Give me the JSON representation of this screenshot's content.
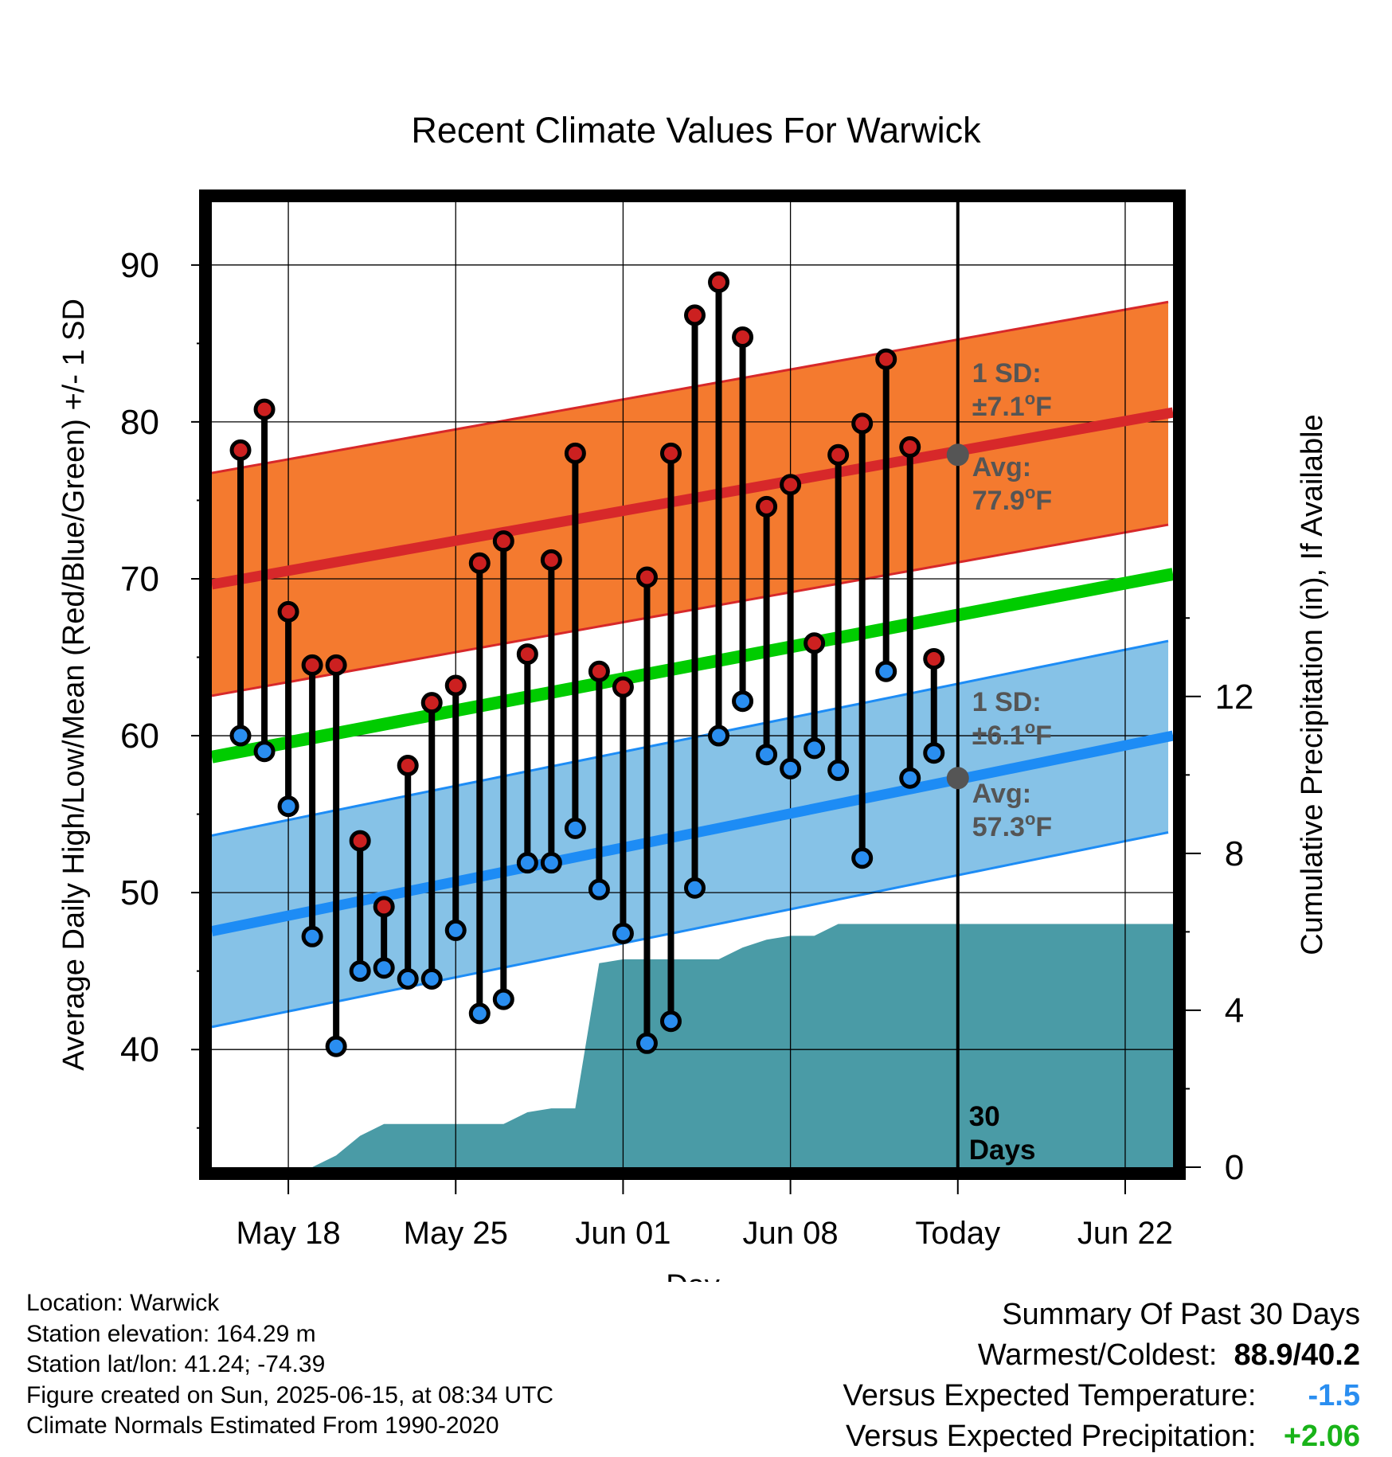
{
  "chart_data": {
    "type": "line",
    "title": "Recent Climate Values For Warwick",
    "xlabel": "Day",
    "ylabel": "Average Daily High/Low/Mean (Red/Blue/Green) +/- 1 SD",
    "y2label": "Cumulative Precipitation (in), If Available",
    "ylim": [
      32.5,
      94.0
    ],
    "y2lim": [
      0,
      24.6
    ],
    "y_ticks": [
      40,
      50,
      60,
      70,
      80,
      90
    ],
    "y2_ticks": [
      0,
      4,
      8,
      12
    ],
    "x_tick_labels": [
      {
        "day": 3,
        "label": "May 18"
      },
      {
        "day": 10,
        "label": "May 25"
      },
      {
        "day": 17,
        "label": "Jun 01"
      },
      {
        "day": 24,
        "label": "Jun 08"
      },
      {
        "day": 31,
        "label": "Today"
      },
      {
        "day": 38,
        "label": "Jun 22"
      }
    ],
    "grid": true,
    "today_marker": {
      "day": 31,
      "label_line1": "30",
      "label_line2": "Days"
    },
    "highs": [
      78.2,
      80.8,
      67.9,
      64.5,
      64.5,
      53.3,
      49.1,
      58.1,
      62.1,
      63.2,
      71.0,
      72.4,
      65.2,
      71.2,
      78.0,
      64.1,
      63.1,
      70.1,
      78.0,
      86.8,
      88.9,
      85.4,
      74.6,
      76.0,
      65.9,
      77.9,
      79.9,
      84.0,
      78.4,
      64.9
    ],
    "lows": [
      60.0,
      59.0,
      55.5,
      47.2,
      40.2,
      45.0,
      45.2,
      44.5,
      44.5,
      47.6,
      42.3,
      43.2,
      51.9,
      51.9,
      54.1,
      50.2,
      47.4,
      40.4,
      41.8,
      50.3,
      60.0,
      62.2,
      58.8,
      57.9,
      59.2,
      57.8,
      52.2,
      64.1,
      57.3,
      58.9
    ],
    "normal_high": {
      "start": 69.7,
      "end": 80.6,
      "today": 77.9,
      "sd": 7.1
    },
    "normal_low": {
      "start": 47.6,
      "end": 60.0,
      "today": 57.3,
      "sd": 6.1
    },
    "normal_mean": {
      "start": 58.7,
      "end": 70.3
    },
    "cumulative_precip_days": [
      0,
      1,
      2,
      3,
      4,
      5,
      6,
      7,
      8,
      9,
      10,
      11,
      12,
      13,
      14,
      15,
      16,
      17,
      18,
      19,
      20,
      21,
      22,
      23,
      24,
      25,
      26,
      27,
      28,
      29,
      30,
      31,
      32,
      33,
      34,
      35,
      36,
      37,
      38,
      39,
      40
    ],
    "cumulative_precip": [
      0,
      0,
      0,
      0,
      0,
      0.3,
      0.8,
      1.1,
      1.1,
      1.1,
      1.1,
      1.1,
      1.1,
      1.4,
      1.5,
      1.5,
      5.2,
      5.3,
      5.3,
      5.3,
      5.3,
      5.3,
      5.6,
      5.8,
      5.9,
      5.9,
      6.2,
      6.2,
      6.2,
      6.2,
      6.2,
      6.2,
      6.2,
      6.2,
      6.2,
      6.2,
      6.2,
      6.2,
      6.2,
      6.2,
      6.2
    ],
    "annotations": {
      "high_sd_label": "1 SD:",
      "high_sd_value": "±7.1",
      "high_avg_label": "Avg:",
      "high_avg_value": "77.9",
      "low_sd_label": "1 SD:",
      "low_sd_value": "±6.1",
      "low_avg_label": "Avg:",
      "low_avg_value": "57.3",
      "degree_symbol": "o",
      "unit": "F"
    },
    "colors": {
      "high_band": "#f47a2f",
      "high_avg_line": "#d7282a",
      "low_band": "#86c2e7",
      "low_avg_line": "#1d8cf5",
      "mean_line": "#00cc00",
      "precip": "#4a9ba6",
      "high_point": "#cc2020",
      "low_point": "#2a8ef0",
      "avg_marker": "#555555"
    }
  },
  "footer": {
    "location": "Location: Warwick",
    "elevation": "Station elevation: 164.29 m",
    "latlon": "Station lat/lon: 41.24; -74.39",
    "created": "Figure created on Sun, 2025-06-15, at 08:34 UTC",
    "normals": "Climate Normals Estimated From 1990-2020"
  },
  "summary": {
    "title": "Summary Of Past 30 Days",
    "warm_cold_label": "Warmest/Coldest:",
    "warm_cold_value": "88.9/40.2",
    "temp_label": "Versus Expected Temperature:",
    "temp_value": "-1.5",
    "temp_color": "#2a8ef0",
    "precip_label": "Versus Expected Precipitation:",
    "precip_value": "+2.06",
    "precip_color": "#19b319"
  }
}
